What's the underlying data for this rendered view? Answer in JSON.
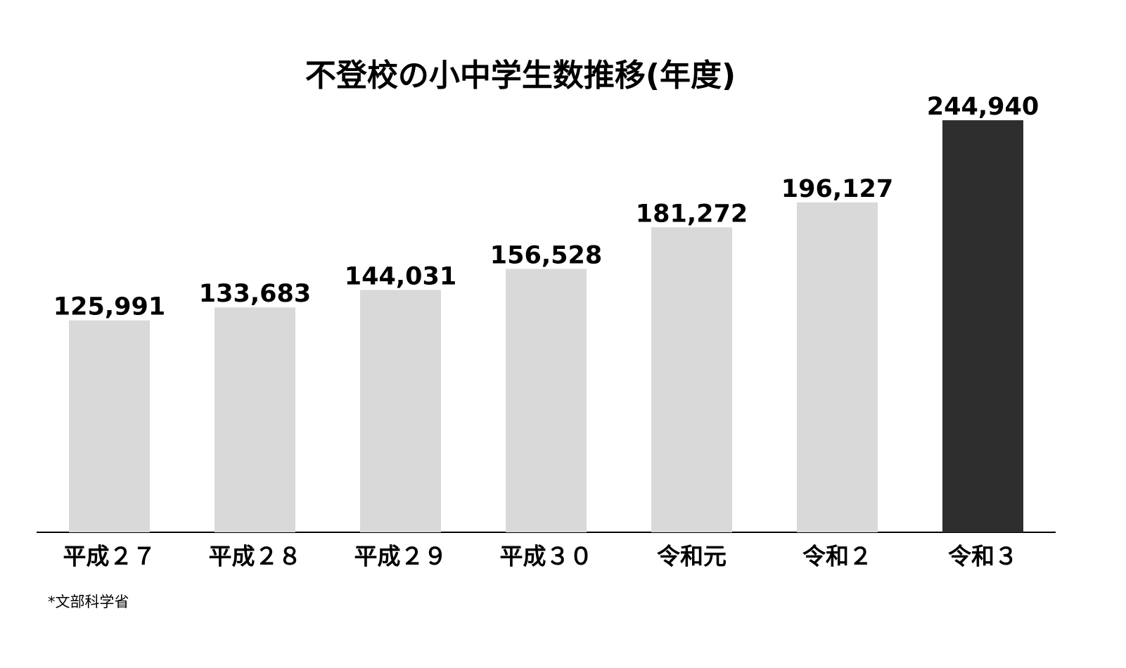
{
  "chart_data": {
    "type": "bar",
    "title": "不登校の小中学生数推移(年度)",
    "categories": [
      "平成２７",
      "平成２８",
      "平成２９",
      "平成３０",
      "令和元",
      "令和２",
      "令和３"
    ],
    "values": [
      125991,
      133683,
      144031,
      156528,
      181272,
      196127,
      244940
    ],
    "value_labels": [
      "125,991",
      "133,683",
      "144,031",
      "156,528",
      "181,272",
      "196,127",
      "244,940"
    ],
    "colors": [
      "#d9d9d9",
      "#d9d9d9",
      "#d9d9d9",
      "#d9d9d9",
      "#d9d9d9",
      "#d9d9d9",
      "#2e2e2e"
    ],
    "note": "*文部科学省"
  }
}
